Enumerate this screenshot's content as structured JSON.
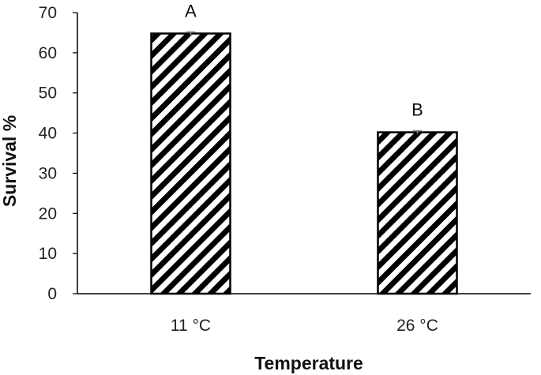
{
  "chart_data": {
    "type": "bar",
    "categories": [
      "11 °C",
      "26 °C"
    ],
    "values": [
      64.8,
      40.2
    ],
    "errors": [
      0.4,
      0.4
    ],
    "significance_labels": [
      "A",
      "B"
    ],
    "xlabel": "Temperature",
    "ylabel": "Survival %",
    "ylim": [
      0,
      70
    ],
    "yticks": [
      0,
      10,
      20,
      30,
      40,
      50,
      60,
      70
    ],
    "grid": false,
    "bar_pattern": "diagonal-hatch",
    "colors": {
      "bar_stroke": "#000000",
      "hatch": "#000000",
      "bar_fill": "#ffffff",
      "axis": "#000000"
    }
  }
}
